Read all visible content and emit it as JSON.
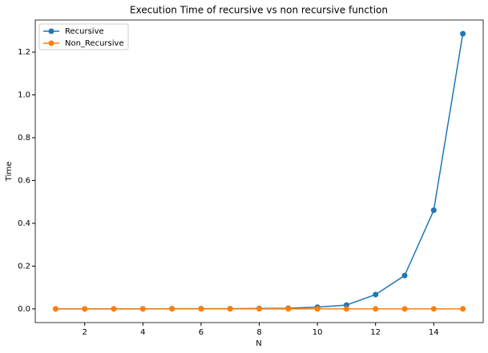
{
  "chart_data": {
    "type": "line",
    "title": "Execution Time of recursive vs non recursive function",
    "x_label": "N",
    "y_label": "Time",
    "x": [
      1,
      2,
      3,
      4,
      5,
      6,
      7,
      8,
      9,
      10,
      11,
      12,
      13,
      14,
      15
    ],
    "series": [
      {
        "name": "Recursive",
        "color": "#1f77b4",
        "values": [
          0.0,
          0.0,
          0.0,
          0.0,
          0.001,
          0.001,
          0.001,
          0.002,
          0.003,
          0.008,
          0.018,
          0.067,
          0.156,
          0.461,
          1.286
        ]
      },
      {
        "name": "Non_Recursive",
        "color": "#ff7f0e",
        "values": [
          0.0,
          0.0,
          0.0,
          0.0,
          0.0,
          0.0,
          0.0,
          0.0,
          0.0,
          0.0,
          0.0,
          0.0,
          0.0,
          0.0,
          0.0
        ]
      }
    ],
    "xlim": [
      0.3,
      15.7
    ],
    "ylim": [
      -0.064,
      1.35
    ],
    "xticks": [
      2,
      4,
      6,
      8,
      10,
      12,
      14
    ],
    "yticks": [
      {
        "value": 0.0,
        "label": "0.0"
      },
      0.2,
      0.4,
      0.6,
      0.8,
      {
        "value": 1.0,
        "label": "1.0"
      },
      1.2
    ],
    "grid": false,
    "legend": "upper left",
    "markers": true
  }
}
